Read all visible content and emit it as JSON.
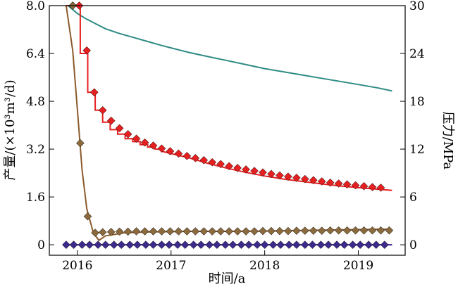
{
  "chart_data": {
    "type": "line",
    "xlabel": "时间/a",
    "ylabel_left": "产量/(×10³m³/d)",
    "ylabel_right": "压力/MPa",
    "x_ticks": [
      "2016",
      "2017",
      "2018",
      "2019"
    ],
    "x_tick_values": [
      2016.0,
      2017.0,
      2018.0,
      2019.0
    ],
    "y_left_ticks": [
      "0",
      "1.6",
      "3.2",
      "4.8",
      "6.4",
      "8.0"
    ],
    "y_left_tick_values": [
      0,
      1.6,
      3.2,
      4.8,
      6.4,
      8.0
    ],
    "y_right_ticks": [
      "0",
      "6",
      "12",
      "18",
      "24",
      "30"
    ],
    "y_right_tick_values": [
      0,
      6,
      12,
      18,
      24,
      30
    ],
    "xlim": [
      2015.7,
      2019.5
    ],
    "ylim_left": [
      -0.35,
      8.0
    ],
    "ylim_right": [
      -1.3125,
      30
    ],
    "grid": false,
    "legend": "none",
    "series": [
      {
        "axis": "right",
        "style": "line",
        "color": "#2e8b84",
        "x": [
          2015.9,
          2016.0,
          2016.1,
          2016.2,
          2016.3,
          2016.45,
          2016.6,
          2016.75,
          2016.9,
          2017.0,
          2017.2,
          2017.4,
          2017.6,
          2017.8,
          2018.0,
          2018.2,
          2018.4,
          2018.6,
          2018.8,
          2019.0,
          2019.2,
          2019.36
        ],
        "y": [
          30.0,
          29.0,
          28.3,
          27.7,
          27.1,
          26.5,
          26.0,
          25.5,
          25.0,
          24.7,
          24.1,
          23.6,
          23.1,
          22.6,
          22.1,
          21.7,
          21.3,
          20.9,
          20.5,
          20.1,
          19.7,
          19.3
        ]
      },
      {
        "axis": "left",
        "style": "step-line",
        "color": "#e62020",
        "x": [
          2015.88,
          2016.03,
          2016.03,
          2016.11,
          2016.11,
          2016.19,
          2016.19,
          2016.27,
          2016.27,
          2016.35,
          2016.35,
          2016.43,
          2016.43,
          2016.51,
          2016.51,
          2016.59,
          2016.59,
          2016.67,
          2016.67,
          2016.75,
          2016.75,
          2016.83,
          2016.83,
          2016.91,
          2016.91,
          2017.0,
          2017.2,
          2017.4,
          2017.6,
          2017.8,
          2018.0,
          2018.2,
          2018.4,
          2018.6,
          2018.8,
          2019.0,
          2019.2,
          2019.36
        ],
        "y": [
          8.0,
          8.0,
          6.4,
          6.4,
          5.1,
          5.1,
          4.5,
          4.5,
          4.1,
          4.1,
          3.85,
          3.85,
          3.7,
          3.7,
          3.55,
          3.55,
          3.45,
          3.45,
          3.35,
          3.35,
          3.27,
          3.27,
          3.2,
          3.2,
          3.12,
          3.05,
          2.9,
          2.72,
          2.56,
          2.42,
          2.3,
          2.2,
          2.12,
          2.04,
          1.97,
          1.91,
          1.86,
          1.82
        ]
      },
      {
        "axis": "left",
        "style": "markers",
        "marker": "diamond",
        "color": "#e62020",
        "x": [
          2015.95,
          2016.02,
          2016.1,
          2016.18,
          2016.27,
          2016.36,
          2016.45,
          2016.54,
          2016.63,
          2016.72,
          2016.81,
          2016.9,
          2016.99,
          2017.08,
          2017.17,
          2017.26,
          2017.35,
          2017.44,
          2017.53,
          2017.62,
          2017.71,
          2017.8,
          2017.89,
          2017.98,
          2018.07,
          2018.16,
          2018.25,
          2018.34,
          2018.43,
          2018.52,
          2018.61,
          2018.7,
          2018.79,
          2018.88,
          2018.97,
          2019.06,
          2019.15,
          2019.24
        ],
        "y": [
          8.0,
          8.0,
          6.5,
          5.1,
          4.5,
          4.15,
          3.9,
          3.7,
          3.55,
          3.42,
          3.32,
          3.22,
          3.13,
          3.05,
          2.97,
          2.9,
          2.83,
          2.76,
          2.7,
          2.63,
          2.57,
          2.52,
          2.47,
          2.42,
          2.37,
          2.32,
          2.28,
          2.24,
          2.2,
          2.16,
          2.12,
          2.08,
          2.05,
          2.02,
          1.99,
          1.96,
          1.93,
          1.91
        ]
      },
      {
        "axis": "left",
        "style": "line",
        "color": "#8b5a2b",
        "x": [
          2015.88,
          2015.95,
          2016.0,
          2016.05,
          2016.1,
          2016.17,
          2016.23,
          2016.3,
          2016.5,
          2016.8,
          2017.2,
          2017.6,
          2018.0,
          2018.4,
          2018.8,
          2019.2,
          2019.36
        ],
        "y": [
          8.0,
          6.5,
          4.5,
          2.5,
          1.2,
          0.4,
          0.15,
          0.3,
          0.4,
          0.43,
          0.45,
          0.45,
          0.46,
          0.48,
          0.5,
          0.52,
          0.52
        ]
      },
      {
        "axis": "left",
        "style": "markers",
        "marker": "diamond",
        "color": "#8b6a3e",
        "x": [
          2015.95,
          2016.03,
          2016.11,
          2016.19,
          2016.27,
          2016.36,
          2016.45,
          2016.54,
          2016.63,
          2016.72,
          2016.81,
          2016.9,
          2016.99,
          2017.08,
          2017.17,
          2017.26,
          2017.35,
          2017.44,
          2017.53,
          2017.62,
          2017.71,
          2017.8,
          2017.89,
          2017.98,
          2018.07,
          2018.16,
          2018.25,
          2018.34,
          2018.43,
          2018.52,
          2018.61,
          2018.7,
          2018.79,
          2018.88,
          2018.97,
          2019.06,
          2019.15,
          2019.24,
          2019.33
        ],
        "y": [
          8.0,
          3.4,
          0.95,
          0.4,
          0.42,
          0.43,
          0.44,
          0.44,
          0.45,
          0.45,
          0.45,
          0.45,
          0.45,
          0.45,
          0.45,
          0.45,
          0.45,
          0.45,
          0.45,
          0.45,
          0.45,
          0.45,
          0.45,
          0.46,
          0.46,
          0.46,
          0.46,
          0.47,
          0.47,
          0.47,
          0.47,
          0.48,
          0.48,
          0.48,
          0.48,
          0.48,
          0.48,
          0.48,
          0.48
        ]
      },
      {
        "axis": "left",
        "style": "line",
        "color": "#3d1f8a",
        "x": [
          2015.88,
          2019.36
        ],
        "y": [
          0.0,
          0.0
        ]
      },
      {
        "axis": "left",
        "style": "markers",
        "marker": "diamond",
        "color": "#3d2a8c",
        "x": [
          2015.88,
          2015.96,
          2016.05,
          2016.13,
          2016.22,
          2016.3,
          2016.39,
          2016.47,
          2016.56,
          2016.64,
          2016.73,
          2016.81,
          2016.9,
          2016.98,
          2017.07,
          2017.15,
          2017.24,
          2017.32,
          2017.41,
          2017.49,
          2017.58,
          2017.66,
          2017.75,
          2017.83,
          2017.92,
          2018.0,
          2018.09,
          2018.17,
          2018.26,
          2018.34,
          2018.43,
          2018.51,
          2018.6,
          2018.68,
          2018.77,
          2018.85,
          2018.94,
          2019.02,
          2019.11,
          2019.19,
          2019.28
        ],
        "y": [
          0,
          0,
          0,
          0,
          0,
          0,
          0,
          0,
          0,
          0,
          0,
          0,
          0,
          0,
          0,
          0,
          0,
          0,
          0,
          0,
          0,
          0,
          0,
          0,
          0,
          0,
          0,
          0,
          0,
          0,
          0,
          0,
          0,
          0,
          0,
          0,
          0,
          0,
          0,
          0,
          0
        ]
      }
    ]
  }
}
